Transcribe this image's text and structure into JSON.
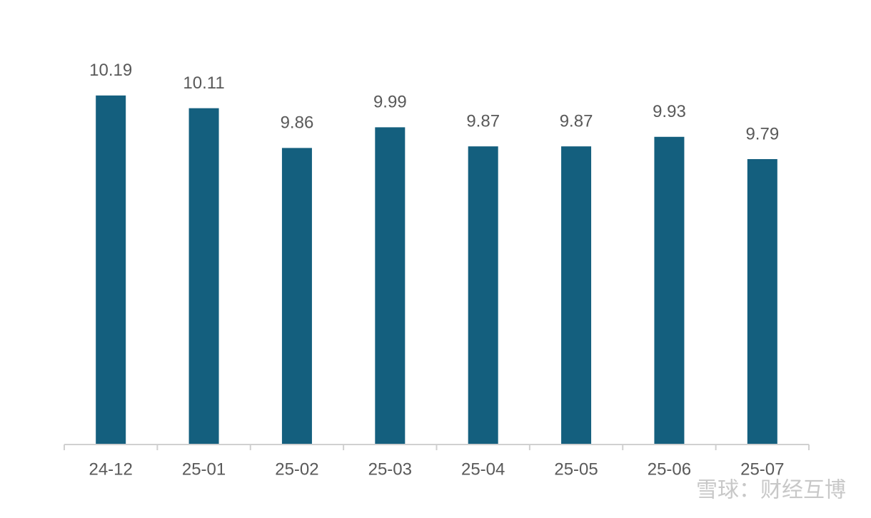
{
  "chart_data": {
    "type": "bar",
    "categories": [
      "24-12",
      "25-01",
      "25-02",
      "25-03",
      "25-04",
      "25-05",
      "25-06",
      "25-07"
    ],
    "values": [
      10.19,
      10.11,
      9.86,
      9.99,
      9.87,
      9.87,
      9.93,
      9.79
    ],
    "color": "#145f7e",
    "ylim": [
      8,
      10.4
    ],
    "watermark": "雪球：财经互博"
  }
}
